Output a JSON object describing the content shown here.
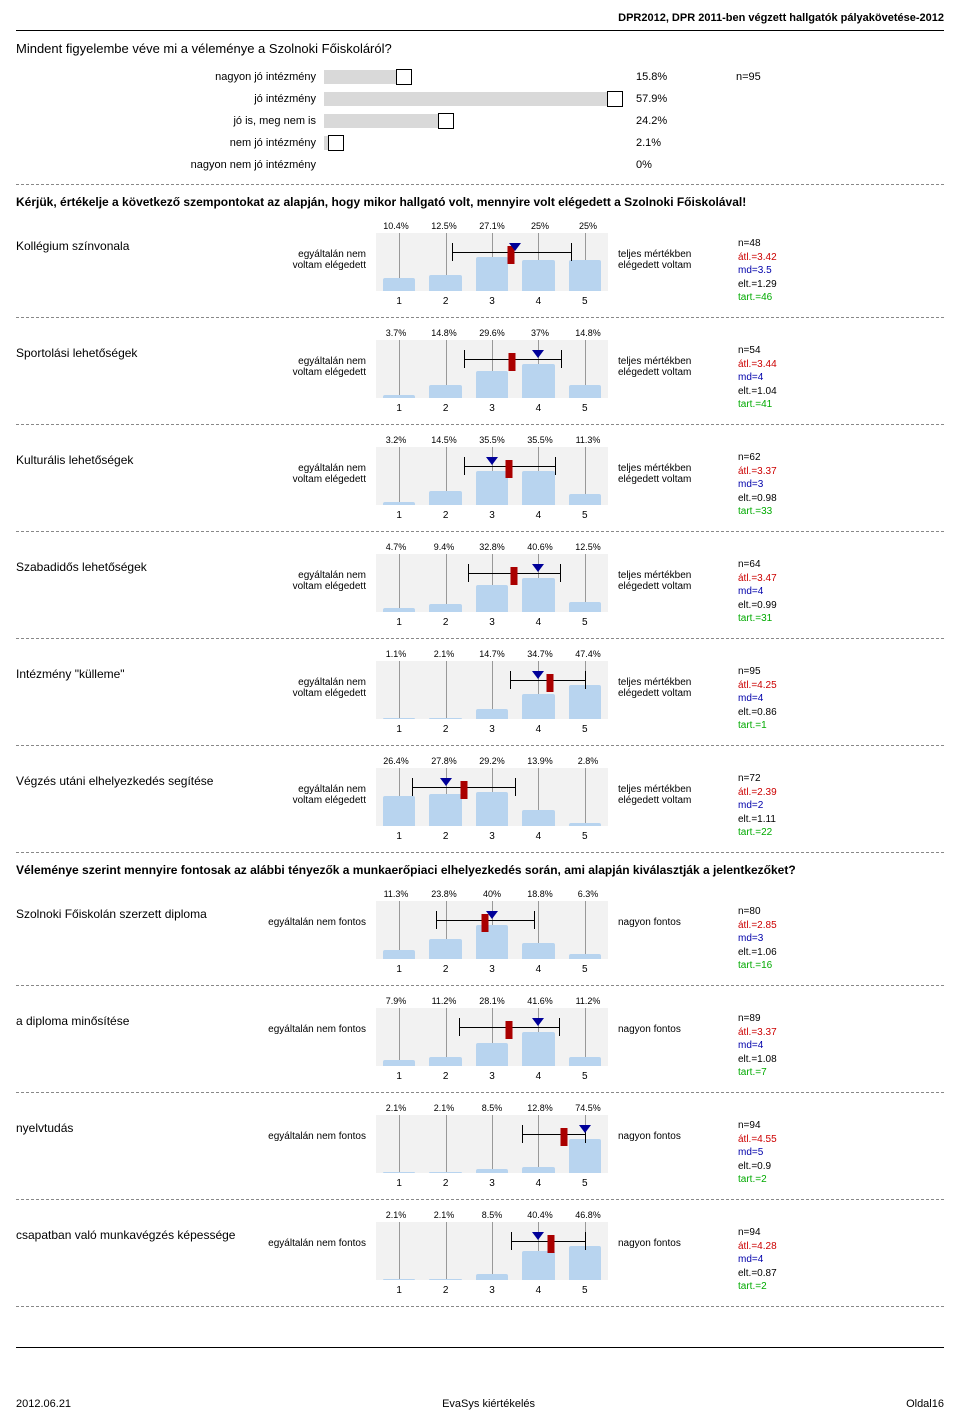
{
  "header": {
    "title": "DPR2012, DPR 2011-ben végzett hallgatók pályakövetése-2012"
  },
  "q1": {
    "title": "Mindent figyelembe véve mi a véleménye a Szolnoki Főiskoláról?",
    "n_label": "n=95",
    "max": 60,
    "rows": [
      {
        "label": "nagyon jó intézmény",
        "pct": 15.8,
        "display": "15.8%"
      },
      {
        "label": "jó intézmény",
        "pct": 57.9,
        "display": "57.9%"
      },
      {
        "label": "jó is, meg nem is",
        "pct": 24.2,
        "display": "24.2%"
      },
      {
        "label": "nem jó intézmény",
        "pct": 2.1,
        "display": "2.1%"
      },
      {
        "label": "nagyon nem jó intézmény",
        "pct": 0,
        "display": "0%"
      }
    ]
  },
  "section2_title": "Kérjük, értékelje a következő szempontokat az alapján, hogy mikor hallgató volt, mennyire volt elégedett a Szolnoki Főiskolával!",
  "section3_title": "Véleménye szerint mennyire fontosak az alábbi tényezők a munkaerőpiaci elhelyezkedés során, ami alapján kiválasztják a jelentkezőket?",
  "likert_left_a": "egyáltalán nem voltam elégedett",
  "likert_right_a": "teljes mértékben elégedett voltam",
  "likert_left_b": "egyáltalán nem fontos",
  "likert_right_b": "nagyon fontos",
  "ticks": [
    "1",
    "2",
    "3",
    "4",
    "5"
  ],
  "likerts_a": [
    {
      "label": "Kollégium színvonala",
      "pcts": [
        "10.4%",
        "12.5%",
        "27.1%",
        "25%",
        "25%"
      ],
      "bars": [
        10.4,
        12.5,
        27.1,
        25,
        25
      ],
      "mean": 3.42,
      "median": 3.5,
      "std": 1.29,
      "stats": {
        "n": "n=48",
        "atl": "átl.=3.42",
        "md": "md=3.5",
        "elt": "elt.=1.29",
        "tart": "tart.=46"
      }
    },
    {
      "label": "Sportolási lehetőségek",
      "pcts": [
        "3.7%",
        "14.8%",
        "29.6%",
        "37%",
        "14.8%"
      ],
      "bars": [
        3.7,
        14.8,
        29.6,
        37,
        14.8
      ],
      "mean": 3.44,
      "median": 4,
      "std": 1.04,
      "stats": {
        "n": "n=54",
        "atl": "átl.=3.44",
        "md": "md=4",
        "elt": "elt.=1.04",
        "tart": "tart.=41"
      }
    },
    {
      "label": "Kulturális lehetőségek",
      "pcts": [
        "3.2%",
        "14.5%",
        "35.5%",
        "35.5%",
        "11.3%"
      ],
      "bars": [
        3.2,
        14.5,
        35.5,
        35.5,
        11.3
      ],
      "mean": 3.37,
      "median": 3,
      "std": 0.98,
      "stats": {
        "n": "n=62",
        "atl": "átl.=3.37",
        "md": "md=3",
        "elt": "elt.=0.98",
        "tart": "tart.=33"
      }
    },
    {
      "label": "Szabadidős lehetőségek",
      "pcts": [
        "4.7%",
        "9.4%",
        "32.8%",
        "40.6%",
        "12.5%"
      ],
      "bars": [
        4.7,
        9.4,
        32.8,
        40.6,
        12.5
      ],
      "mean": 3.47,
      "median": 4,
      "std": 0.99,
      "stats": {
        "n": "n=64",
        "atl": "átl.=3.47",
        "md": "md=4",
        "elt": "elt.=0.99",
        "tart": "tart.=31"
      }
    },
    {
      "label": "Intézmény \"külleme\"",
      "pcts": [
        "1.1%",
        "2.1%",
        "14.7%",
        "34.7%",
        "47.4%"
      ],
      "bars": [
        1.1,
        2.1,
        14.7,
        34.7,
        47.4
      ],
      "mean": 4.25,
      "median": 4,
      "std": 0.86,
      "stats": {
        "n": "n=95",
        "atl": "átl.=4.25",
        "md": "md=4",
        "elt": "elt.=0.86",
        "tart": "tart.=1"
      }
    },
    {
      "label": "Végzés utáni elhelyezkedés segítése",
      "pcts": [
        "26.4%",
        "27.8%",
        "29.2%",
        "13.9%",
        "2.8%"
      ],
      "bars": [
        26.4,
        27.8,
        29.2,
        13.9,
        2.8
      ],
      "mean": 2.39,
      "median": 2,
      "std": 1.11,
      "stats": {
        "n": "n=72",
        "atl": "átl.=2.39",
        "md": "md=2",
        "elt": "elt.=1.11",
        "tart": "tart.=22"
      }
    }
  ],
  "likerts_b": [
    {
      "label": "Szolnoki Főiskolán szerzett diploma",
      "pcts": [
        "11.3%",
        "23.8%",
        "40%",
        "18.8%",
        "6.3%"
      ],
      "bars": [
        11.3,
        23.8,
        40,
        18.8,
        6.3
      ],
      "mean": 2.85,
      "median": 3,
      "std": 1.06,
      "stats": {
        "n": "n=80",
        "atl": "átl.=2.85",
        "md": "md=3",
        "elt": "elt.=1.06",
        "tart": "tart.=16"
      }
    },
    {
      "label": "a diploma minősítése",
      "pcts": [
        "7.9%",
        "11.2%",
        "28.1%",
        "41.6%",
        "11.2%"
      ],
      "bars": [
        7.9,
        11.2,
        28.1,
        41.6,
        11.2
      ],
      "mean": 3.37,
      "median": 4,
      "std": 1.08,
      "stats": {
        "n": "n=89",
        "atl": "átl.=3.37",
        "md": "md=4",
        "elt": "elt.=1.08",
        "tart": "tart.=7"
      }
    },
    {
      "label": "nyelvtudás",
      "pcts": [
        "2.1%",
        "2.1%",
        "8.5%",
        "12.8%",
        "74.5%"
      ],
      "bars": [
        2.1,
        2.1,
        8.5,
        12.8,
        74.5
      ],
      "mean": 4.55,
      "median": 5,
      "std": 0.9,
      "stats": {
        "n": "n=94",
        "atl": "átl.=4.55",
        "md": "md=5",
        "elt": "elt.=0.9",
        "tart": "tart.=2"
      }
    },
    {
      "label": "csapatban való munkavégzés képessége",
      "pcts": [
        "2.1%",
        "2.1%",
        "8.5%",
        "40.4%",
        "46.8%"
      ],
      "bars": [
        2.1,
        2.1,
        8.5,
        40.4,
        46.8
      ],
      "mean": 4.28,
      "median": 4,
      "std": 0.87,
      "stats": {
        "n": "n=94",
        "atl": "átl.=4.28",
        "md": "md=4",
        "elt": "elt.=0.87",
        "tart": "tart.=2"
      }
    }
  ],
  "footer": {
    "date": "2012.06.21",
    "center": "EvaSys kiértékelés",
    "page": "Oldal16"
  },
  "colors": {
    "bar_fill": "#b8d4ef",
    "plot_bg": "#f2f2f2",
    "mean_marker": "#a00",
    "median_marker": "#009",
    "hbar_fill": "#d9d9d9"
  }
}
